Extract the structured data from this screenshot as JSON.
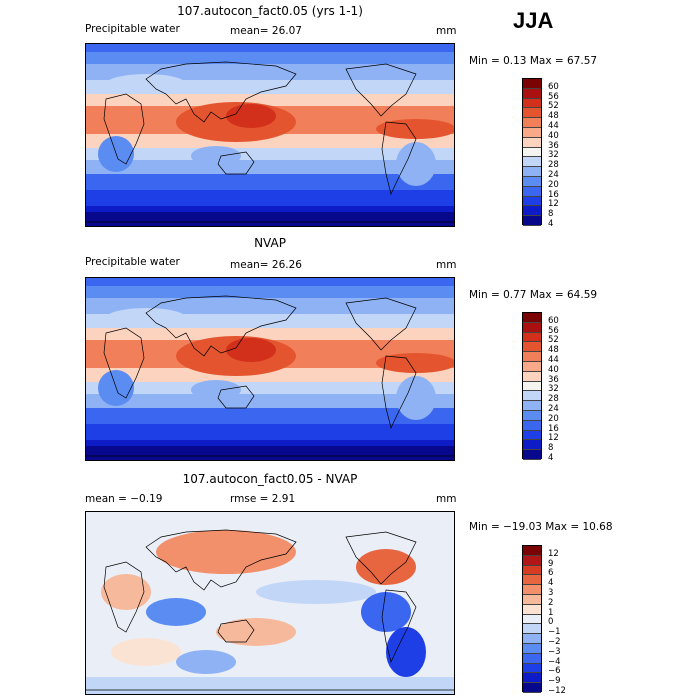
{
  "season": "JJA",
  "palette_abs": [
    "#08088c",
    "#0d1cc6",
    "#1f3fe6",
    "#3a66f0",
    "#5b8cf2",
    "#8fb2f4",
    "#c2d6f7",
    "#f4f4f0",
    "#fbd3bf",
    "#f7a98a",
    "#f17f59",
    "#e4552f",
    "#d2301a",
    "#aa1010",
    "#7a0404"
  ],
  "palette_diff": [
    "#08088c",
    "#0d1cc6",
    "#1f3fe6",
    "#3a66f0",
    "#5b8cf2",
    "#8fb2f4",
    "#c2d6f7",
    "#eaeff7",
    "#fbe3d4",
    "#f7b99c",
    "#f2906c",
    "#e8663f",
    "#d63c22",
    "#b01616",
    "#7a0404"
  ],
  "panels": [
    {
      "title": "107.autocon_fact0.05 (yrs 1-1)",
      "left_label": "Precipitable water",
      "center_label": "mean=  26.07",
      "units": "mm",
      "minmax": "Min =   0.13 Max =  67.57",
      "colorbar_ticks": [
        "60",
        "56",
        "52",
        "48",
        "44",
        "40",
        "36",
        "32",
        "28",
        "24",
        "20",
        "16",
        "12",
        "8",
        "4"
      ]
    },
    {
      "title": "NVAP",
      "left_label": "Precipitable water",
      "center_label": "mean=  26.26",
      "units": "mm",
      "minmax": "Min =   0.77 Max =  64.59",
      "colorbar_ticks": [
        "60",
        "56",
        "52",
        "48",
        "44",
        "40",
        "36",
        "32",
        "28",
        "24",
        "20",
        "16",
        "12",
        "8",
        "4"
      ]
    },
    {
      "title": "107.autocon_fact0.05 - NVAP",
      "left_label": "mean =  −0.19",
      "center_label": "rmse =   2.91",
      "units": "mm",
      "minmax": "Min = −19.03 Max =  10.68",
      "colorbar_ticks": [
        "12",
        "9",
        "6",
        "4",
        "3",
        "2",
        "1",
        "0",
        "−1",
        "−2",
        "−3",
        "−4",
        "−6",
        "−9",
        "−12"
      ]
    }
  ]
}
